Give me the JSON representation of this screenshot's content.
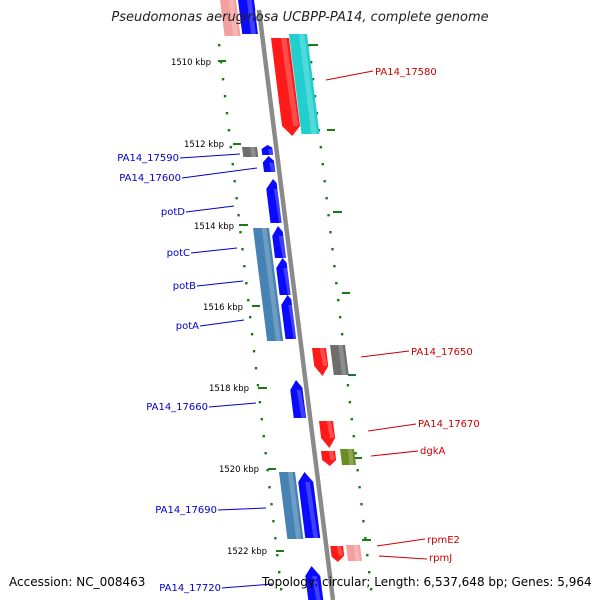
{
  "title": "Pseudomonas aeruginosa UCBPP-PA14, complete genome",
  "footer": {
    "accession": "Accession: NC_008463",
    "topology": "Topology: circular; Length: 6,537,648 bp; Genes: 5,964"
  },
  "colors": {
    "backbone": "#8a8a8a",
    "tick": "#1a7a1a",
    "forward_label": "#0000cc",
    "reverse_label": "#cc0000",
    "red": "#ff1a1a",
    "pink": "#f4a0a0",
    "blue": "#0a0aff",
    "steel": "#4682b4",
    "cyan": "#22cfcf",
    "gray": "#6e6e6e",
    "olive": "#6b8e23"
  },
  "scale_labels": [
    "1510 kbp",
    "1512 kbp",
    "1514 kbp",
    "1516 kbp",
    "1518 kbp",
    "1520 kbp",
    "1522 kbp"
  ],
  "gene_labels": {
    "forward": [
      "PA14_17590",
      "PA14_17600",
      "potD",
      "potC",
      "potB",
      "potA",
      "PA14_17660",
      "PA14_17690",
      "PA14_17720"
    ],
    "reverse": [
      "PA14_17580",
      "PA14_17650",
      "PA14_17670",
      "dgkA",
      "rpmE2",
      "rpmJ"
    ]
  }
}
